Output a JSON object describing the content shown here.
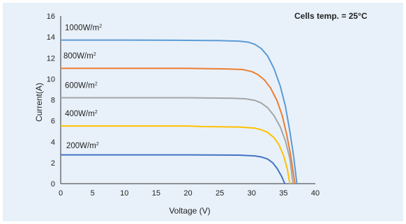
{
  "chart_data": {
    "type": "line",
    "title": "",
    "annotation": "Cells temp. = 25°C",
    "xlabel": "Voltage  (V)",
    "ylabel": "Current(A)",
    "xlim": [
      0,
      40
    ],
    "ylim": [
      0,
      16
    ],
    "xticks": [
      0,
      5,
      10,
      15,
      20,
      25,
      30,
      35,
      40
    ],
    "yticks": [
      0,
      2,
      4,
      6,
      8,
      10,
      12,
      14,
      16
    ],
    "grid": false,
    "legend": "none",
    "series": [
      {
        "name": "1000W/m",
        "name_sup": "2",
        "color": "#5b9bd5",
        "points": [
          [
            0,
            13.7
          ],
          [
            10,
            13.7
          ],
          [
            20,
            13.68
          ],
          [
            25,
            13.65
          ],
          [
            28,
            13.6
          ],
          [
            29.5,
            13.5
          ],
          [
            30.5,
            13.3
          ],
          [
            31.5,
            12.9
          ],
          [
            32.5,
            12.2
          ],
          [
            33.5,
            11.0
          ],
          [
            34.5,
            9.3
          ],
          [
            35.3,
            7.4
          ],
          [
            36.0,
            5.0
          ],
          [
            36.6,
            2.6
          ],
          [
            37.1,
            0
          ]
        ]
      },
      {
        "name": "800W/m",
        "name_sup": "2",
        "color": "#ed7d31",
        "points": [
          [
            0,
            11.0
          ],
          [
            10,
            11.0
          ],
          [
            20,
            11.0
          ],
          [
            26,
            10.95
          ],
          [
            28.5,
            10.9
          ],
          [
            30,
            10.7
          ],
          [
            31,
            10.4
          ],
          [
            32,
            9.9
          ],
          [
            33,
            9.1
          ],
          [
            34,
            7.9
          ],
          [
            34.8,
            6.5
          ],
          [
            35.5,
            4.7
          ],
          [
            36.1,
            2.8
          ],
          [
            36.8,
            0
          ]
        ]
      },
      {
        "name": "600W/m",
        "name_sup": "2",
        "color": "#a5a5a5",
        "points": [
          [
            0,
            8.2
          ],
          [
            10,
            8.2
          ],
          [
            20,
            8.2
          ],
          [
            27,
            8.15
          ],
          [
            29,
            8.1
          ],
          [
            30.5,
            7.95
          ],
          [
            31.5,
            7.7
          ],
          [
            32.5,
            7.25
          ],
          [
            33.5,
            6.5
          ],
          [
            34.5,
            5.4
          ],
          [
            35.3,
            4.1
          ],
          [
            36.0,
            2.4
          ],
          [
            36.5,
            0
          ]
        ]
      },
      {
        "name": "400W/m",
        "name_sup": "2",
        "color": "#ffc000",
        "points": [
          [
            0,
            5.5
          ],
          [
            10,
            5.5
          ],
          [
            20,
            5.5
          ],
          [
            22,
            5.45
          ],
          [
            28,
            5.4
          ],
          [
            30.5,
            5.3
          ],
          [
            31.5,
            5.15
          ],
          [
            32.5,
            4.9
          ],
          [
            33.5,
            4.4
          ],
          [
            34.3,
            3.7
          ],
          [
            35.0,
            2.7
          ],
          [
            35.6,
            1.4
          ],
          [
            36.0,
            0
          ]
        ]
      },
      {
        "name": "200W/m",
        "name_sup": "2",
        "color": "#4472c4",
        "points": [
          [
            0,
            2.75
          ],
          [
            10,
            2.75
          ],
          [
            20,
            2.75
          ],
          [
            28,
            2.72
          ],
          [
            30.5,
            2.65
          ],
          [
            31.5,
            2.55
          ],
          [
            32.5,
            2.35
          ],
          [
            33.3,
            2.0
          ],
          [
            34.0,
            1.45
          ],
          [
            34.7,
            0.7
          ],
          [
            35.2,
            0
          ]
        ]
      }
    ]
  }
}
